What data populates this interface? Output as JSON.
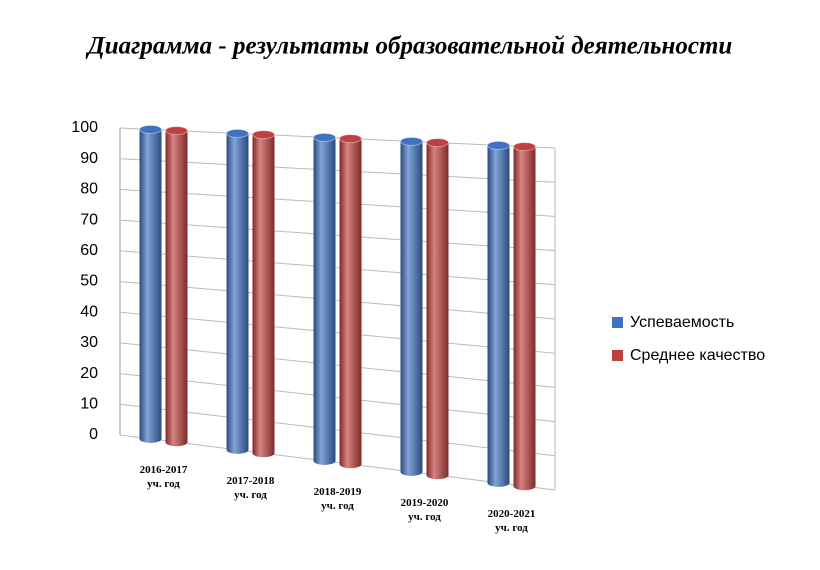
{
  "chart_data": {
    "type": "bar3d",
    "title": "Диаграмма  - результаты образовательной деятельности",
    "categories": [
      "2016-2017\nуч. год",
      "2017-2018\nуч. год",
      "2018-2019\nуч. год",
      "2019-2020\nуч. год",
      "2020-2021\nуч. год"
    ],
    "series": [
      {
        "name": "Успеваемость",
        "color": "#3f72c0",
        "values": [
          100,
          100,
          100,
          100,
          100
        ]
      },
      {
        "name": "Среднее качество",
        "color": "#c0403f",
        "values": [
          100,
          100,
          100,
          100,
          100
        ]
      }
    ],
    "ylim": [
      0,
      100
    ],
    "yticks": [
      0,
      10,
      20,
      30,
      40,
      50,
      60,
      70,
      80,
      90,
      100
    ],
    "grid": true,
    "legend": "right"
  }
}
